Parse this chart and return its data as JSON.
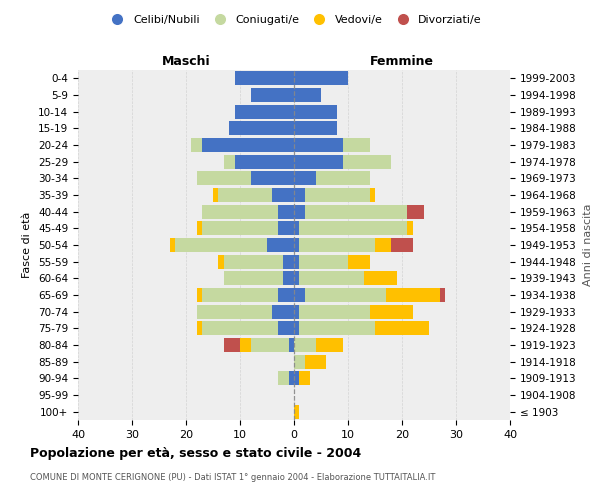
{
  "age_groups": [
    "100+",
    "95-99",
    "90-94",
    "85-89",
    "80-84",
    "75-79",
    "70-74",
    "65-69",
    "60-64",
    "55-59",
    "50-54",
    "45-49",
    "40-44",
    "35-39",
    "30-34",
    "25-29",
    "20-24",
    "15-19",
    "10-14",
    "5-9",
    "0-4"
  ],
  "birth_years": [
    "≤ 1903",
    "1904-1908",
    "1909-1913",
    "1914-1918",
    "1919-1923",
    "1924-1928",
    "1929-1933",
    "1934-1938",
    "1939-1943",
    "1944-1948",
    "1949-1953",
    "1954-1958",
    "1959-1963",
    "1964-1968",
    "1969-1973",
    "1974-1978",
    "1979-1983",
    "1984-1988",
    "1989-1993",
    "1994-1998",
    "1999-2003"
  ],
  "maschi": {
    "celibe": [
      0,
      0,
      1,
      0,
      1,
      3,
      4,
      3,
      2,
      2,
      5,
      3,
      3,
      4,
      8,
      11,
      17,
      12,
      11,
      8,
      11
    ],
    "coniugato": [
      0,
      0,
      2,
      0,
      7,
      14,
      14,
      14,
      11,
      11,
      17,
      14,
      14,
      10,
      10,
      2,
      2,
      0,
      0,
      0,
      0
    ],
    "vedovo": [
      0,
      0,
      0,
      0,
      2,
      1,
      0,
      1,
      0,
      1,
      1,
      1,
      0,
      1,
      0,
      0,
      0,
      0,
      0,
      0,
      0
    ],
    "divorziato": [
      0,
      0,
      0,
      0,
      3,
      0,
      0,
      0,
      0,
      0,
      0,
      0,
      0,
      0,
      0,
      0,
      0,
      0,
      0,
      0,
      0
    ]
  },
  "femmine": {
    "nubile": [
      0,
      0,
      1,
      0,
      0,
      1,
      1,
      2,
      1,
      1,
      1,
      1,
      2,
      2,
      4,
      9,
      9,
      8,
      8,
      5,
      10
    ],
    "coniugata": [
      0,
      0,
      0,
      2,
      4,
      14,
      13,
      15,
      12,
      9,
      14,
      20,
      19,
      12,
      10,
      9,
      5,
      0,
      0,
      0,
      0
    ],
    "vedova": [
      1,
      0,
      2,
      4,
      5,
      10,
      8,
      10,
      6,
      4,
      3,
      1,
      0,
      1,
      0,
      0,
      0,
      0,
      0,
      0,
      0
    ],
    "divorziata": [
      0,
      0,
      0,
      0,
      0,
      0,
      0,
      1,
      0,
      0,
      4,
      0,
      3,
      0,
      0,
      0,
      0,
      0,
      0,
      0,
      0
    ]
  },
  "colors": {
    "celibe_nubile": "#4472c4",
    "coniugato_a": "#c5d9a0",
    "vedovo_a": "#ffc000",
    "divorziato_a": "#c0504d"
  },
  "xlim": 40,
  "title": "Popolazione per età, sesso e stato civile - 2004",
  "subtitle": "COMUNE DI MONTE CERIGNONE (PU) - Dati ISTAT 1° gennaio 2004 - Elaborazione TUTTAITALIA.IT",
  "xlabel_left": "Maschi",
  "xlabel_right": "Femmine",
  "ylabel_left": "Fasce di età",
  "ylabel_right": "Anni di nascita",
  "legend_labels": [
    "Celibi/Nubili",
    "Coniugati/e",
    "Vedovi/e",
    "Divorziati/e"
  ],
  "bg_color": "#eeeeee",
  "grid_color": "#cccccc",
  "fig_width": 6.0,
  "fig_height": 5.0,
  "dpi": 100
}
